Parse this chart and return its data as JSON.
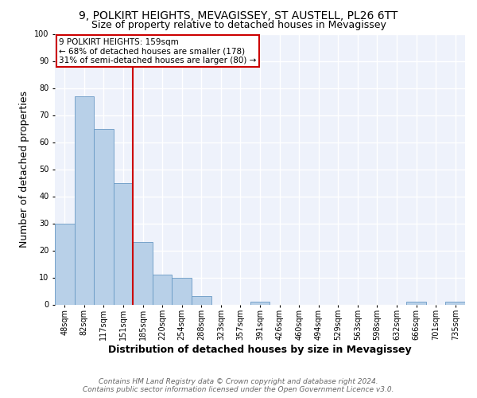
{
  "title1": "9, POLKIRT HEIGHTS, MEVAGISSEY, ST AUSTELL, PL26 6TT",
  "title2": "Size of property relative to detached houses in Mevagissey",
  "xlabel": "Distribution of detached houses by size in Mevagissey",
  "ylabel": "Number of detached properties",
  "footer1": "Contains HM Land Registry data © Crown copyright and database right 2024.",
  "footer2": "Contains public sector information licensed under the Open Government Licence v3.0.",
  "bar_labels": [
    "48sqm",
    "82sqm",
    "117sqm",
    "151sqm",
    "185sqm",
    "220sqm",
    "254sqm",
    "288sqm",
    "323sqm",
    "357sqm",
    "391sqm",
    "426sqm",
    "460sqm",
    "494sqm",
    "529sqm",
    "563sqm",
    "598sqm",
    "632sqm",
    "666sqm",
    "701sqm",
    "735sqm"
  ],
  "bar_values": [
    30,
    77,
    65,
    45,
    23,
    11,
    10,
    3,
    0,
    0,
    1,
    0,
    0,
    0,
    0,
    0,
    0,
    0,
    1,
    0,
    1
  ],
  "bar_color": "#b8d0e8",
  "bar_edgecolor": "#6899c4",
  "vline_color": "#cc0000",
  "annotation_text": "9 POLKIRT HEIGHTS: 159sqm\n← 68% of detached houses are smaller (178)\n31% of semi-detached houses are larger (80) →",
  "annotation_box_color": "#cc0000",
  "ylim": [
    0,
    100
  ],
  "yticks": [
    0,
    10,
    20,
    30,
    40,
    50,
    60,
    70,
    80,
    90,
    100
  ],
  "background_color": "#eef2fb",
  "grid_color": "#ffffff",
  "title_fontsize": 10,
  "subtitle_fontsize": 9,
  "axis_label_fontsize": 9,
  "tick_fontsize": 7,
  "footer_fontsize": 6.5
}
